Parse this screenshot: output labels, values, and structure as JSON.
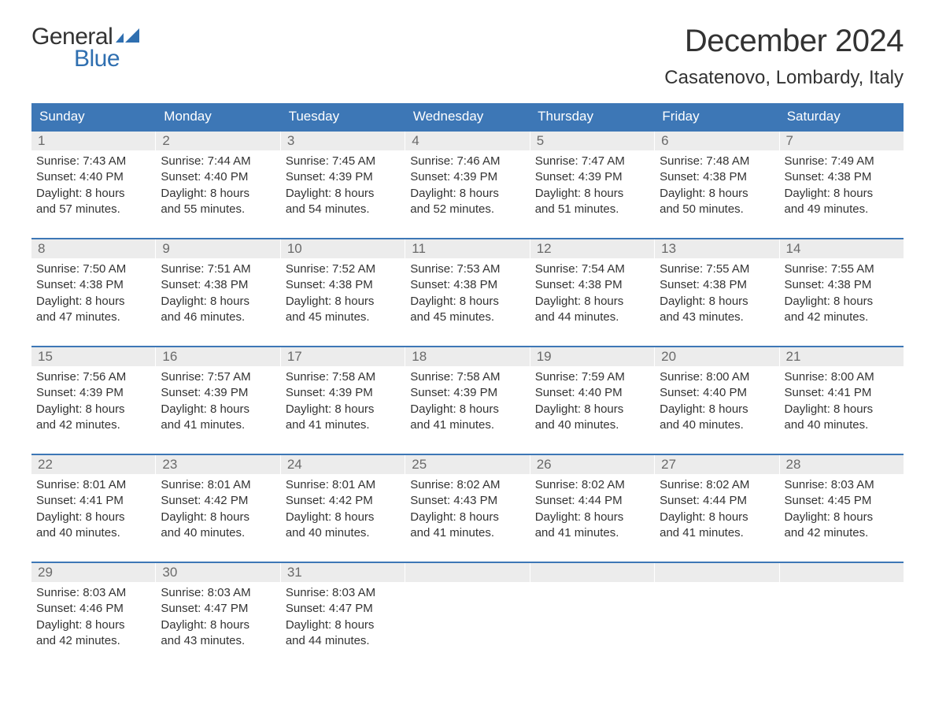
{
  "brand": {
    "word1": "General",
    "word2": "Blue",
    "word1_color": "#333333",
    "word2_color": "#2f6fb0",
    "flag_color": "#2f6fb0"
  },
  "title": "December 2024",
  "location": "Casatenovo, Lombardy, Italy",
  "colors": {
    "header_bg": "#3d77b6",
    "header_text": "#ffffff",
    "week_border": "#3d77b6",
    "daynum_bg": "#ececec",
    "daynum_text": "#6a6a6a",
    "body_text": "#333333",
    "page_bg": "#ffffff"
  },
  "typography": {
    "title_fontsize": 40,
    "location_fontsize": 24,
    "header_fontsize": 17,
    "daynum_fontsize": 17,
    "body_fontsize": 15,
    "font_family": "Arial, Helvetica, sans-serif"
  },
  "day_names": [
    "Sunday",
    "Monday",
    "Tuesday",
    "Wednesday",
    "Thursday",
    "Friday",
    "Saturday"
  ],
  "weeks": [
    [
      {
        "n": "1",
        "sunrise": "Sunrise: 7:43 AM",
        "sunset": "Sunset: 4:40 PM",
        "d1": "Daylight: 8 hours",
        "d2": "and 57 minutes."
      },
      {
        "n": "2",
        "sunrise": "Sunrise: 7:44 AM",
        "sunset": "Sunset: 4:40 PM",
        "d1": "Daylight: 8 hours",
        "d2": "and 55 minutes."
      },
      {
        "n": "3",
        "sunrise": "Sunrise: 7:45 AM",
        "sunset": "Sunset: 4:39 PM",
        "d1": "Daylight: 8 hours",
        "d2": "and 54 minutes."
      },
      {
        "n": "4",
        "sunrise": "Sunrise: 7:46 AM",
        "sunset": "Sunset: 4:39 PM",
        "d1": "Daylight: 8 hours",
        "d2": "and 52 minutes."
      },
      {
        "n": "5",
        "sunrise": "Sunrise: 7:47 AM",
        "sunset": "Sunset: 4:39 PM",
        "d1": "Daylight: 8 hours",
        "d2": "and 51 minutes."
      },
      {
        "n": "6",
        "sunrise": "Sunrise: 7:48 AM",
        "sunset": "Sunset: 4:38 PM",
        "d1": "Daylight: 8 hours",
        "d2": "and 50 minutes."
      },
      {
        "n": "7",
        "sunrise": "Sunrise: 7:49 AM",
        "sunset": "Sunset: 4:38 PM",
        "d1": "Daylight: 8 hours",
        "d2": "and 49 minutes."
      }
    ],
    [
      {
        "n": "8",
        "sunrise": "Sunrise: 7:50 AM",
        "sunset": "Sunset: 4:38 PM",
        "d1": "Daylight: 8 hours",
        "d2": "and 47 minutes."
      },
      {
        "n": "9",
        "sunrise": "Sunrise: 7:51 AM",
        "sunset": "Sunset: 4:38 PM",
        "d1": "Daylight: 8 hours",
        "d2": "and 46 minutes."
      },
      {
        "n": "10",
        "sunrise": "Sunrise: 7:52 AM",
        "sunset": "Sunset: 4:38 PM",
        "d1": "Daylight: 8 hours",
        "d2": "and 45 minutes."
      },
      {
        "n": "11",
        "sunrise": "Sunrise: 7:53 AM",
        "sunset": "Sunset: 4:38 PM",
        "d1": "Daylight: 8 hours",
        "d2": "and 45 minutes."
      },
      {
        "n": "12",
        "sunrise": "Sunrise: 7:54 AM",
        "sunset": "Sunset: 4:38 PM",
        "d1": "Daylight: 8 hours",
        "d2": "and 44 minutes."
      },
      {
        "n": "13",
        "sunrise": "Sunrise: 7:55 AM",
        "sunset": "Sunset: 4:38 PM",
        "d1": "Daylight: 8 hours",
        "d2": "and 43 minutes."
      },
      {
        "n": "14",
        "sunrise": "Sunrise: 7:55 AM",
        "sunset": "Sunset: 4:38 PM",
        "d1": "Daylight: 8 hours",
        "d2": "and 42 minutes."
      }
    ],
    [
      {
        "n": "15",
        "sunrise": "Sunrise: 7:56 AM",
        "sunset": "Sunset: 4:39 PM",
        "d1": "Daylight: 8 hours",
        "d2": "and 42 minutes."
      },
      {
        "n": "16",
        "sunrise": "Sunrise: 7:57 AM",
        "sunset": "Sunset: 4:39 PM",
        "d1": "Daylight: 8 hours",
        "d2": "and 41 minutes."
      },
      {
        "n": "17",
        "sunrise": "Sunrise: 7:58 AM",
        "sunset": "Sunset: 4:39 PM",
        "d1": "Daylight: 8 hours",
        "d2": "and 41 minutes."
      },
      {
        "n": "18",
        "sunrise": "Sunrise: 7:58 AM",
        "sunset": "Sunset: 4:39 PM",
        "d1": "Daylight: 8 hours",
        "d2": "and 41 minutes."
      },
      {
        "n": "19",
        "sunrise": "Sunrise: 7:59 AM",
        "sunset": "Sunset: 4:40 PM",
        "d1": "Daylight: 8 hours",
        "d2": "and 40 minutes."
      },
      {
        "n": "20",
        "sunrise": "Sunrise: 8:00 AM",
        "sunset": "Sunset: 4:40 PM",
        "d1": "Daylight: 8 hours",
        "d2": "and 40 minutes."
      },
      {
        "n": "21",
        "sunrise": "Sunrise: 8:00 AM",
        "sunset": "Sunset: 4:41 PM",
        "d1": "Daylight: 8 hours",
        "d2": "and 40 minutes."
      }
    ],
    [
      {
        "n": "22",
        "sunrise": "Sunrise: 8:01 AM",
        "sunset": "Sunset: 4:41 PM",
        "d1": "Daylight: 8 hours",
        "d2": "and 40 minutes."
      },
      {
        "n": "23",
        "sunrise": "Sunrise: 8:01 AM",
        "sunset": "Sunset: 4:42 PM",
        "d1": "Daylight: 8 hours",
        "d2": "and 40 minutes."
      },
      {
        "n": "24",
        "sunrise": "Sunrise: 8:01 AM",
        "sunset": "Sunset: 4:42 PM",
        "d1": "Daylight: 8 hours",
        "d2": "and 40 minutes."
      },
      {
        "n": "25",
        "sunrise": "Sunrise: 8:02 AM",
        "sunset": "Sunset: 4:43 PM",
        "d1": "Daylight: 8 hours",
        "d2": "and 41 minutes."
      },
      {
        "n": "26",
        "sunrise": "Sunrise: 8:02 AM",
        "sunset": "Sunset: 4:44 PM",
        "d1": "Daylight: 8 hours",
        "d2": "and 41 minutes."
      },
      {
        "n": "27",
        "sunrise": "Sunrise: 8:02 AM",
        "sunset": "Sunset: 4:44 PM",
        "d1": "Daylight: 8 hours",
        "d2": "and 41 minutes."
      },
      {
        "n": "28",
        "sunrise": "Sunrise: 8:03 AM",
        "sunset": "Sunset: 4:45 PM",
        "d1": "Daylight: 8 hours",
        "d2": "and 42 minutes."
      }
    ],
    [
      {
        "n": "29",
        "sunrise": "Sunrise: 8:03 AM",
        "sunset": "Sunset: 4:46 PM",
        "d1": "Daylight: 8 hours",
        "d2": "and 42 minutes."
      },
      {
        "n": "30",
        "sunrise": "Sunrise: 8:03 AM",
        "sunset": "Sunset: 4:47 PM",
        "d1": "Daylight: 8 hours",
        "d2": "and 43 minutes."
      },
      {
        "n": "31",
        "sunrise": "Sunrise: 8:03 AM",
        "sunset": "Sunset: 4:47 PM",
        "d1": "Daylight: 8 hours",
        "d2": "and 44 minutes."
      },
      {
        "empty": true
      },
      {
        "empty": true
      },
      {
        "empty": true
      },
      {
        "empty": true
      }
    ]
  ]
}
